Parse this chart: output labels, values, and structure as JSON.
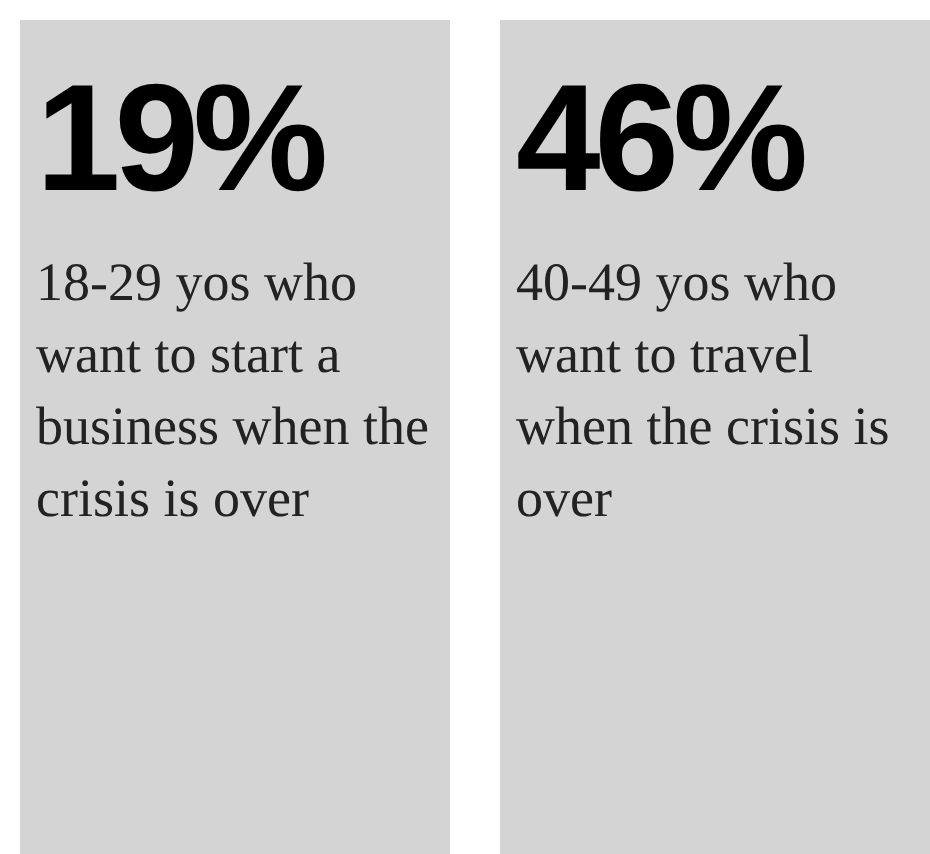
{
  "chart_data": {
    "type": "other",
    "categories": [
      "18-29 yos who want to start a business when the crisis is over",
      "40-49 yos who want to travel when the crisis is over"
    ],
    "values": [
      19,
      46
    ],
    "value_labels": [
      "19%",
      "46%"
    ],
    "colors": [
      "#d4d4d4",
      "#d4d4d4"
    ]
  }
}
